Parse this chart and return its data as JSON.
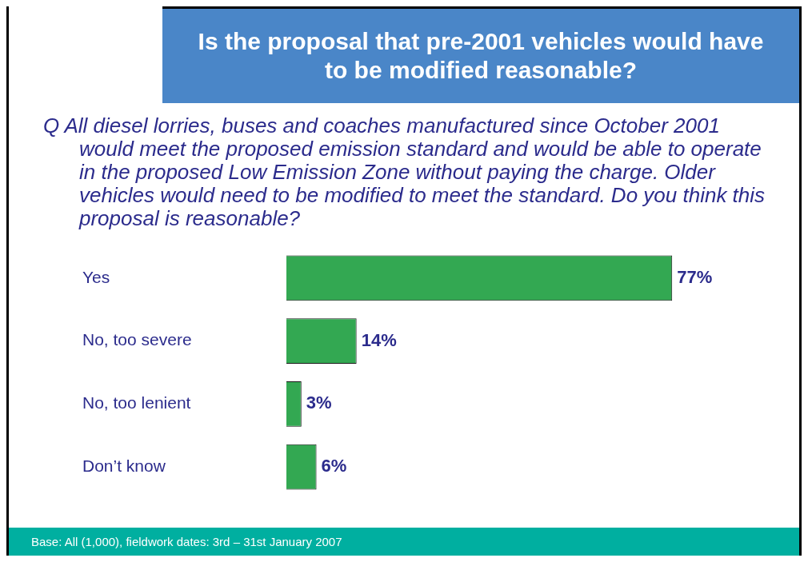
{
  "chart_data": {
    "type": "bar",
    "orientation": "horizontal",
    "title": "Is the proposal that pre-2001 vehicles would have to be modified reasonable?",
    "subtitle": "Q All diesel lorries, buses and coaches manufactured since October 2001 would meet the proposed emission standard and would be able to operate in the proposed Low Emission Zone without paying the charge. Older vehicles would need to be modified to meet the standard. Do you think this proposal is reasonable?",
    "categories": [
      "Yes",
      "No, too severe",
      "No, too lenient",
      "Don’t know"
    ],
    "values": [
      77,
      14,
      3,
      6
    ],
    "value_labels": [
      "77%",
      "14%",
      "3%",
      "6%"
    ],
    "color": "#33a852",
    "tick_labels": "y",
    "legend": false,
    "annotations": [
      "Base: All (1,000), fieldwork dates: 3rd – 31st January 2007"
    ]
  }
}
